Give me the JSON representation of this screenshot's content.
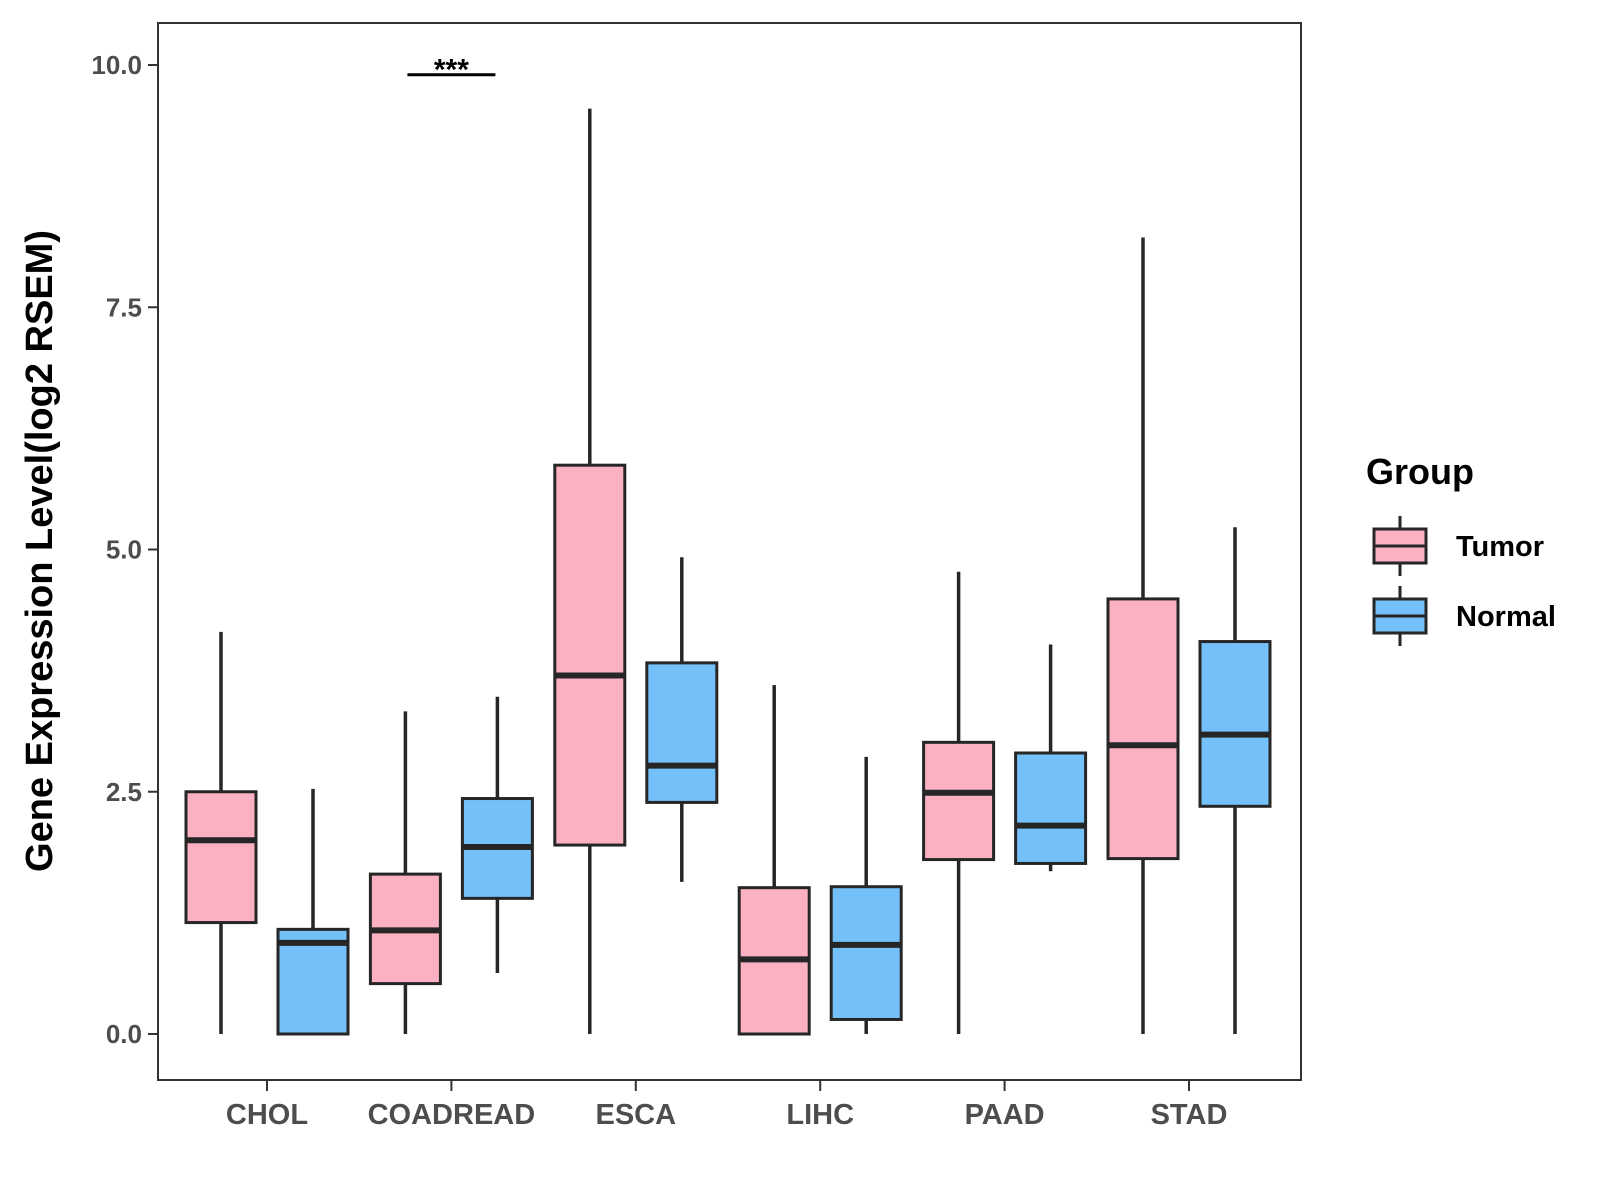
{
  "chart_data": {
    "type": "boxplot",
    "title": "",
    "xlabel": "",
    "ylabel": "Gene Expression Level(log2 RSEM)",
    "ylim": [
      -0.5,
      10.4
    ],
    "yticks": [
      0.0,
      2.5,
      5.0,
      7.5,
      10.0
    ],
    "ytick_labels": [
      "0.0",
      "2.5",
      "5.0",
      "7.5",
      "10.0"
    ],
    "categories": [
      "CHOL",
      "COADREAD",
      "ESCA",
      "LIHC",
      "PAAD",
      "STAD"
    ],
    "legend": {
      "title": "Group",
      "position": "right"
    },
    "series": [
      {
        "name": "Tumor",
        "color": "#fbb1c2",
        "boxes": [
          {
            "whisker_low": 0.0,
            "q1": 1.15,
            "median": 2.0,
            "q3": 2.5,
            "whisker_high": 4.15
          },
          {
            "whisker_low": 0.0,
            "q1": 0.52,
            "median": 1.07,
            "q3": 1.65,
            "whisker_high": 3.33
          },
          {
            "whisker_low": 0.0,
            "q1": 1.95,
            "median": 3.7,
            "q3": 5.87,
            "whisker_high": 9.55
          },
          {
            "whisker_low": 0.0,
            "q1": 0.0,
            "median": 0.77,
            "q3": 1.51,
            "whisker_high": 3.6
          },
          {
            "whisker_low": 0.0,
            "q1": 1.8,
            "median": 2.49,
            "q3": 3.01,
            "whisker_high": 4.77
          },
          {
            "whisker_low": 0.0,
            "q1": 1.81,
            "median": 2.98,
            "q3": 4.49,
            "whisker_high": 8.22
          }
        ]
      },
      {
        "name": "Normal",
        "color": "#74c0f8",
        "boxes": [
          {
            "whisker_low": 0.0,
            "q1": 0.0,
            "median": 0.94,
            "q3": 1.08,
            "whisker_high": 2.53
          },
          {
            "whisker_low": 0.63,
            "q1": 1.4,
            "median": 1.93,
            "q3": 2.43,
            "whisker_high": 3.48
          },
          {
            "whisker_low": 1.57,
            "q1": 2.39,
            "median": 2.77,
            "q3": 3.83,
            "whisker_high": 4.92
          },
          {
            "whisker_low": 0.0,
            "q1": 0.15,
            "median": 0.92,
            "q3": 1.52,
            "whisker_high": 2.86
          },
          {
            "whisker_low": 1.68,
            "q1": 1.76,
            "median": 2.15,
            "q3": 2.9,
            "whisker_high": 4.02
          },
          {
            "whisker_low": 0.0,
            "q1": 2.35,
            "median": 3.09,
            "q3": 4.05,
            "whisker_high": 5.23
          }
        ]
      }
    ],
    "annotations": [
      {
        "text": "***",
        "category": "COADREAD",
        "y": 9.9
      }
    ]
  }
}
